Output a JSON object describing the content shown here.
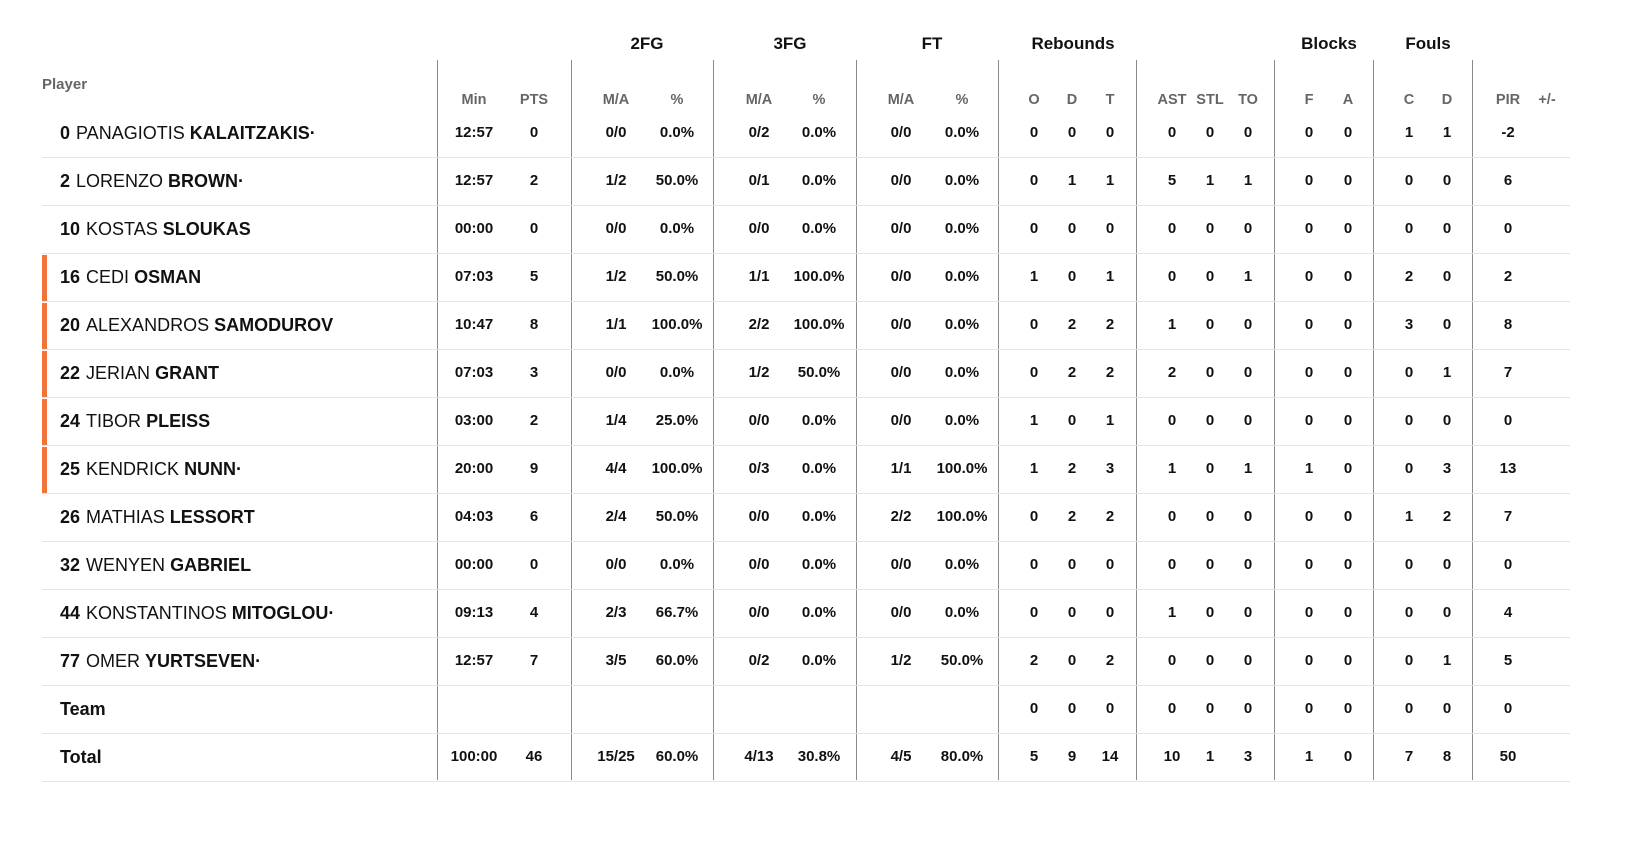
{
  "header": {
    "player_label": "Player",
    "groups": [
      "2FG",
      "3FG",
      "FT",
      "Rebounds",
      "Blocks",
      "Fouls"
    ],
    "columns": [
      "Min",
      "PTS",
      "M/A",
      "%",
      "M/A",
      "%",
      "M/A",
      "%",
      "O",
      "D",
      "T",
      "AST",
      "STL",
      "TO",
      "F",
      "A",
      "C",
      "D",
      "PIR",
      "+/-"
    ]
  },
  "rows": [
    {
      "num": "0",
      "first": "PANAGIOTIS",
      "last": "KALAITZAKIS·",
      "starter": false,
      "cells": [
        "12:57",
        "0",
        "0/0",
        "0.0%",
        "0/2",
        "0.0%",
        "0/0",
        "0.0%",
        "0",
        "0",
        "0",
        "0",
        "0",
        "0",
        "0",
        "0",
        "1",
        "1",
        "-2",
        ""
      ]
    },
    {
      "num": "2",
      "first": "LORENZO",
      "last": "BROWN·",
      "starter": false,
      "cells": [
        "12:57",
        "2",
        "1/2",
        "50.0%",
        "0/1",
        "0.0%",
        "0/0",
        "0.0%",
        "0",
        "1",
        "1",
        "5",
        "1",
        "1",
        "0",
        "0",
        "0",
        "0",
        "6",
        ""
      ]
    },
    {
      "num": "10",
      "first": "KOSTAS",
      "last": "SLOUKAS",
      "starter": false,
      "cells": [
        "00:00",
        "0",
        "0/0",
        "0.0%",
        "0/0",
        "0.0%",
        "0/0",
        "0.0%",
        "0",
        "0",
        "0",
        "0",
        "0",
        "0",
        "0",
        "0",
        "0",
        "0",
        "0",
        ""
      ]
    },
    {
      "num": "16",
      "first": "CEDI",
      "last": "OSMAN",
      "starter": true,
      "cells": [
        "07:03",
        "5",
        "1/2",
        "50.0%",
        "1/1",
        "100.0%",
        "0/0",
        "0.0%",
        "1",
        "0",
        "1",
        "0",
        "0",
        "1",
        "0",
        "0",
        "2",
        "0",
        "2",
        ""
      ]
    },
    {
      "num": "20",
      "first": "ALEXANDROS",
      "last": "SAMODUROV",
      "starter": true,
      "cells": [
        "10:47",
        "8",
        "1/1",
        "100.0%",
        "2/2",
        "100.0%",
        "0/0",
        "0.0%",
        "0",
        "2",
        "2",
        "1",
        "0",
        "0",
        "0",
        "0",
        "3",
        "0",
        "8",
        ""
      ]
    },
    {
      "num": "22",
      "first": "JERIAN",
      "last": "GRANT",
      "starter": true,
      "cells": [
        "07:03",
        "3",
        "0/0",
        "0.0%",
        "1/2",
        "50.0%",
        "0/0",
        "0.0%",
        "0",
        "2",
        "2",
        "2",
        "0",
        "0",
        "0",
        "0",
        "0",
        "1",
        "7",
        ""
      ]
    },
    {
      "num": "24",
      "first": "TIBOR",
      "last": "PLEISS",
      "starter": true,
      "cells": [
        "03:00",
        "2",
        "1/4",
        "25.0%",
        "0/0",
        "0.0%",
        "0/0",
        "0.0%",
        "1",
        "0",
        "1",
        "0",
        "0",
        "0",
        "0",
        "0",
        "0",
        "0",
        "0",
        ""
      ]
    },
    {
      "num": "25",
      "first": "KENDRICK",
      "last": "NUNN·",
      "starter": true,
      "cells": [
        "20:00",
        "9",
        "4/4",
        "100.0%",
        "0/3",
        "0.0%",
        "1/1",
        "100.0%",
        "1",
        "2",
        "3",
        "1",
        "0",
        "1",
        "1",
        "0",
        "0",
        "3",
        "13",
        ""
      ]
    },
    {
      "num": "26",
      "first": "MATHIAS",
      "last": "LESSORT",
      "starter": false,
      "cells": [
        "04:03",
        "6",
        "2/4",
        "50.0%",
        "0/0",
        "0.0%",
        "2/2",
        "100.0%",
        "0",
        "2",
        "2",
        "0",
        "0",
        "0",
        "0",
        "0",
        "1",
        "2",
        "7",
        ""
      ]
    },
    {
      "num": "32",
      "first": "WENYEN",
      "last": "GABRIEL",
      "starter": false,
      "cells": [
        "00:00",
        "0",
        "0/0",
        "0.0%",
        "0/0",
        "0.0%",
        "0/0",
        "0.0%",
        "0",
        "0",
        "0",
        "0",
        "0",
        "0",
        "0",
        "0",
        "0",
        "0",
        "0",
        ""
      ]
    },
    {
      "num": "44",
      "first": "KONSTANTINOS",
      "last": "MITOGLOU·",
      "starter": false,
      "cells": [
        "09:13",
        "4",
        "2/3",
        "66.7%",
        "0/0",
        "0.0%",
        "0/0",
        "0.0%",
        "0",
        "0",
        "0",
        "1",
        "0",
        "0",
        "0",
        "0",
        "0",
        "0",
        "4",
        ""
      ]
    },
    {
      "num": "77",
      "first": "OMER",
      "last": "YURTSEVEN·",
      "starter": false,
      "cells": [
        "12:57",
        "7",
        "3/5",
        "60.0%",
        "0/2",
        "0.0%",
        "1/2",
        "50.0%",
        "2",
        "0",
        "2",
        "0",
        "0",
        "0",
        "0",
        "0",
        "0",
        "1",
        "5",
        ""
      ]
    },
    {
      "num": "",
      "first": "",
      "last": "Team",
      "starter": false,
      "cells": [
        "",
        "",
        "",
        "",
        "",
        "",
        "",
        "",
        "0",
        "0",
        "0",
        "0",
        "0",
        "0",
        "0",
        "0",
        "0",
        "0",
        "0",
        ""
      ]
    },
    {
      "num": "",
      "first": "",
      "last": "Total",
      "starter": false,
      "cells": [
        "100:00",
        "46",
        "15/25",
        "60.0%",
        "4/13",
        "30.8%",
        "4/5",
        "80.0%",
        "5",
        "9",
        "14",
        "10",
        "1",
        "3",
        "1",
        "0",
        "7",
        "8",
        "50",
        ""
      ]
    }
  ]
}
